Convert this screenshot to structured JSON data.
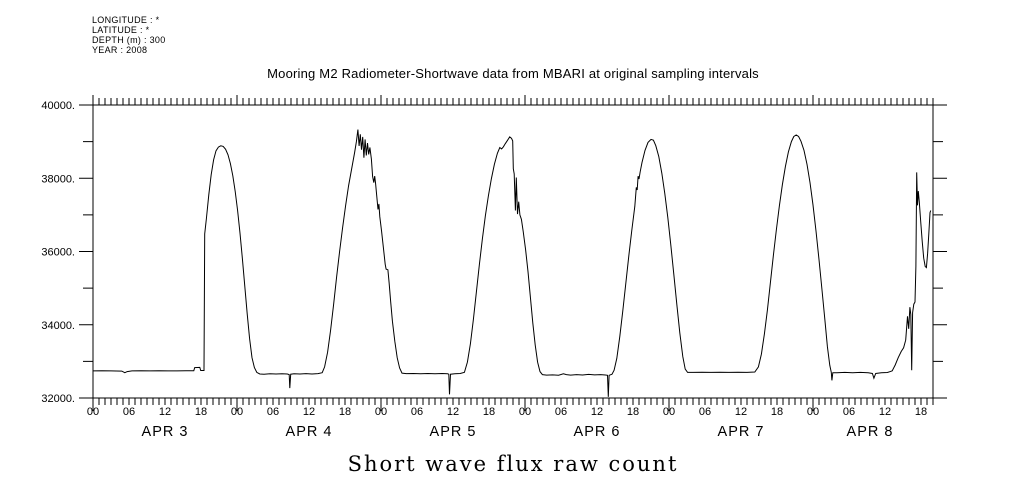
{
  "header": {
    "meta_lines": [
      "LONGITUDE : *",
      "LATITUDE : *",
      "DEPTH (m) : 300",
      "YEAR : 2008"
    ],
    "title": "Mooring M2 Radiometer-Shortwave data from MBARI at original sampling intervals"
  },
  "footer": {
    "xlabel": "Short wave flux raw count"
  },
  "colors": {
    "background": "#ffffff",
    "axis": "#000000",
    "line": "#000000"
  },
  "chart_data": {
    "type": "line",
    "title": "Mooring M2 Radiometer-Shortwave data from MBARI at original sampling intervals",
    "xlabel": "Short wave flux raw count",
    "ylabel": "",
    "grid": false,
    "legend": "none",
    "x_axis": {
      "unit": "hour (UTC), starting 2008 APR 3 00:00",
      "start_hour": 0,
      "end_hour": 140,
      "minor_tick_hours": 1,
      "labeled_tick_hours": 6,
      "hour_label_cycle": [
        "00",
        "06",
        "12",
        "18"
      ],
      "day_labels": [
        {
          "text": "APR  3",
          "center_hour": 12
        },
        {
          "text": "APR  4",
          "center_hour": 36
        },
        {
          "text": "APR  5",
          "center_hour": 60
        },
        {
          "text": "APR  6",
          "center_hour": 84
        },
        {
          "text": "APR  7",
          "center_hour": 108
        },
        {
          "text": "APR  8",
          "center_hour": 129.5
        }
      ]
    },
    "y_axis": {
      "min": 32000,
      "max": 40000,
      "minor_step": 1000,
      "major_step": 2000,
      "major_labels": [
        "32000.",
        "34000.",
        "36000.",
        "38000.",
        "40000."
      ]
    },
    "series": [
      {
        "name": "shortwave flux raw count",
        "color": "#000000",
        "points": [
          [
            0,
            32740
          ],
          [
            1.5,
            32745
          ],
          [
            3,
            32740
          ],
          [
            4.8,
            32735
          ],
          [
            5.3,
            32690
          ],
          [
            5.7,
            32720
          ],
          [
            6.5,
            32740
          ],
          [
            8,
            32745
          ],
          [
            9.5,
            32740
          ],
          [
            11,
            32745
          ],
          [
            12.5,
            32740
          ],
          [
            14,
            32740
          ],
          [
            15.5,
            32745
          ],
          [
            16.8,
            32745
          ],
          [
            16.95,
            32830
          ],
          [
            17.8,
            32835
          ],
          [
            17.95,
            32750
          ],
          [
            18.5,
            32750
          ],
          [
            18.62,
            36480
          ],
          [
            18.9,
            36900
          ],
          [
            19.3,
            37550
          ],
          [
            19.7,
            38100
          ],
          [
            20.1,
            38500
          ],
          [
            20.5,
            38750
          ],
          [
            20.9,
            38850
          ],
          [
            21.3,
            38885
          ],
          [
            21.7,
            38870
          ],
          [
            22.1,
            38790
          ],
          [
            22.5,
            38640
          ],
          [
            22.9,
            38400
          ],
          [
            23.3,
            38070
          ],
          [
            23.7,
            37640
          ],
          [
            24.1,
            37120
          ],
          [
            24.5,
            36500
          ],
          [
            24.9,
            35800
          ],
          [
            25.3,
            35050
          ],
          [
            25.7,
            34300
          ],
          [
            26.1,
            33620
          ],
          [
            26.5,
            33100
          ],
          [
            26.9,
            32830
          ],
          [
            27.3,
            32700
          ],
          [
            27.8,
            32655
          ],
          [
            28.5,
            32650
          ],
          [
            29.5,
            32660
          ],
          [
            30.5,
            32655
          ],
          [
            31.5,
            32660
          ],
          [
            32.4,
            32655
          ],
          [
            32.7,
            32640
          ],
          [
            32.8,
            32270
          ],
          [
            32.95,
            32650
          ],
          [
            33.5,
            32660
          ],
          [
            34.5,
            32655
          ],
          [
            35.5,
            32665
          ],
          [
            36.5,
            32655
          ],
          [
            37.5,
            32665
          ],
          [
            38.2,
            32690
          ],
          [
            38.6,
            32850
          ],
          [
            39.1,
            33250
          ],
          [
            39.6,
            33850
          ],
          [
            40.1,
            34550
          ],
          [
            40.6,
            35300
          ],
          [
            41.1,
            36000
          ],
          [
            41.6,
            36650
          ],
          [
            42.1,
            37250
          ],
          [
            42.6,
            37800
          ],
          [
            43.1,
            38250
          ],
          [
            43.6,
            38700
          ],
          [
            43.9,
            39000
          ],
          [
            44.15,
            39330
          ],
          [
            44.35,
            38880
          ],
          [
            44.55,
            39200
          ],
          [
            44.75,
            38780
          ],
          [
            44.95,
            39130
          ],
          [
            45.15,
            38560
          ],
          [
            45.35,
            39060
          ],
          [
            45.55,
            38620
          ],
          [
            45.75,
            38960
          ],
          [
            45.95,
            38650
          ],
          [
            46.15,
            38840
          ],
          [
            46.4,
            38520
          ],
          [
            46.6,
            38050
          ],
          [
            46.8,
            37880
          ],
          [
            46.95,
            38060
          ],
          [
            47.1,
            37850
          ],
          [
            47.3,
            37500
          ],
          [
            47.5,
            37150
          ],
          [
            47.65,
            37300
          ],
          [
            47.8,
            36950
          ],
          [
            48.1,
            36550
          ],
          [
            48.4,
            36100
          ],
          [
            48.7,
            35650
          ],
          [
            48.85,
            35520
          ],
          [
            49.15,
            35500
          ],
          [
            49.35,
            35150
          ],
          [
            49.6,
            34650
          ],
          [
            49.9,
            34100
          ],
          [
            50.3,
            33550
          ],
          [
            50.7,
            33100
          ],
          [
            51.1,
            32820
          ],
          [
            51.5,
            32680
          ],
          [
            52.2,
            32665
          ],
          [
            53.4,
            32670
          ],
          [
            54.6,
            32660
          ],
          [
            55.8,
            32670
          ],
          [
            57,
            32660
          ],
          [
            58.2,
            32668
          ],
          [
            59.1,
            32660
          ],
          [
            59.3,
            32650
          ],
          [
            59.42,
            32100
          ],
          [
            59.58,
            32650
          ],
          [
            60.3,
            32660
          ],
          [
            61.2,
            32670
          ],
          [
            61.9,
            32700
          ],
          [
            62.4,
            32980
          ],
          [
            62.9,
            33480
          ],
          [
            63.4,
            34150
          ],
          [
            63.9,
            34900
          ],
          [
            64.4,
            35650
          ],
          [
            64.9,
            36350
          ],
          [
            65.4,
            36980
          ],
          [
            65.9,
            37520
          ],
          [
            66.4,
            37990
          ],
          [
            66.9,
            38380
          ],
          [
            67.4,
            38680
          ],
          [
            67.8,
            38840
          ],
          [
            68.1,
            38800
          ],
          [
            68.4,
            38860
          ],
          [
            68.7,
            38940
          ],
          [
            69.1,
            39040
          ],
          [
            69.45,
            39130
          ],
          [
            69.75,
            39090
          ],
          [
            69.95,
            39020
          ],
          [
            70.05,
            38260
          ],
          [
            70.2,
            38120
          ],
          [
            70.4,
            37120
          ],
          [
            70.55,
            38020
          ],
          [
            70.75,
            37020
          ],
          [
            70.95,
            37360
          ],
          [
            71.15,
            37000
          ],
          [
            71.4,
            36880
          ],
          [
            71.7,
            36550
          ],
          [
            72.1,
            36050
          ],
          [
            72.5,
            35450
          ],
          [
            72.9,
            34750
          ],
          [
            73.3,
            34050
          ],
          [
            73.7,
            33450
          ],
          [
            74.1,
            32980
          ],
          [
            74.5,
            32720
          ],
          [
            74.9,
            32640
          ],
          [
            75.6,
            32625
          ],
          [
            76.6,
            32630
          ],
          [
            77.6,
            32622
          ],
          [
            78.4,
            32660
          ],
          [
            78.9,
            32640
          ],
          [
            79.6,
            32625
          ],
          [
            80.6,
            32640
          ],
          [
            81.6,
            32628
          ],
          [
            82.6,
            32645
          ],
          [
            83.6,
            32630
          ],
          [
            84.6,
            32638
          ],
          [
            85.4,
            32628
          ],
          [
            85.75,
            32620
          ],
          [
            85.88,
            32030
          ],
          [
            86.02,
            32620
          ],
          [
            86.5,
            32650
          ],
          [
            86.85,
            32760
          ],
          [
            87.3,
            33080
          ],
          [
            87.8,
            33680
          ],
          [
            88.3,
            34380
          ],
          [
            88.8,
            35130
          ],
          [
            89.3,
            35880
          ],
          [
            89.8,
            36580
          ],
          [
            90.3,
            37230
          ],
          [
            90.55,
            37750
          ],
          [
            90.7,
            37680
          ],
          [
            90.85,
            38060
          ],
          [
            91.0,
            37980
          ],
          [
            91.2,
            38180
          ],
          [
            91.5,
            38430
          ],
          [
            92.0,
            38760
          ],
          [
            92.5,
            38980
          ],
          [
            93.0,
            39060
          ],
          [
            93.4,
            39040
          ],
          [
            93.8,
            38890
          ],
          [
            94.3,
            38590
          ],
          [
            94.8,
            38140
          ],
          [
            95.3,
            37580
          ],
          [
            95.8,
            36930
          ],
          [
            96.3,
            36180
          ],
          [
            96.8,
            35380
          ],
          [
            97.3,
            34560
          ],
          [
            97.8,
            33780
          ],
          [
            98.3,
            33130
          ],
          [
            98.7,
            32790
          ],
          [
            99.1,
            32700
          ],
          [
            100,
            32700
          ],
          [
            101.5,
            32705
          ],
          [
            103,
            32698
          ],
          [
            104.5,
            32705
          ],
          [
            106,
            32700
          ],
          [
            107.5,
            32705
          ],
          [
            109,
            32700
          ],
          [
            110.3,
            32710
          ],
          [
            110.9,
            32850
          ],
          [
            111.4,
            33200
          ],
          [
            111.9,
            33750
          ],
          [
            112.4,
            34400
          ],
          [
            112.9,
            35150
          ],
          [
            113.4,
            35900
          ],
          [
            113.9,
            36600
          ],
          [
            114.4,
            37250
          ],
          [
            114.9,
            37830
          ],
          [
            115.4,
            38320
          ],
          [
            115.9,
            38720
          ],
          [
            116.4,
            39000
          ],
          [
            116.8,
            39140
          ],
          [
            117.2,
            39180
          ],
          [
            117.6,
            39140
          ],
          [
            118.0,
            39010
          ],
          [
            118.5,
            38760
          ],
          [
            119.0,
            38380
          ],
          [
            119.5,
            37880
          ],
          [
            120.0,
            37270
          ],
          [
            120.5,
            36560
          ],
          [
            121.0,
            35780
          ],
          [
            121.5,
            34950
          ],
          [
            122.0,
            34100
          ],
          [
            122.4,
            33400
          ],
          [
            122.8,
            32890
          ],
          [
            123.05,
            32700
          ],
          [
            123.15,
            32480
          ],
          [
            123.3,
            32690
          ],
          [
            124,
            32690
          ],
          [
            125.3,
            32698
          ],
          [
            126.6,
            32690
          ],
          [
            127.9,
            32698
          ],
          [
            129.2,
            32688
          ],
          [
            129.9,
            32670
          ],
          [
            130.15,
            32540
          ],
          [
            130.45,
            32670
          ],
          [
            131.4,
            32688
          ],
          [
            132.4,
            32695
          ],
          [
            133.2,
            32740
          ],
          [
            133.7,
            32900
          ],
          [
            134.2,
            33100
          ],
          [
            134.7,
            33270
          ],
          [
            135.1,
            33370
          ],
          [
            135.45,
            33580
          ],
          [
            135.75,
            34230
          ],
          [
            135.95,
            33890
          ],
          [
            136.15,
            34480
          ],
          [
            136.3,
            34280
          ],
          [
            136.45,
            32760
          ],
          [
            136.6,
            34330
          ],
          [
            136.8,
            34560
          ],
          [
            137.0,
            34620
          ],
          [
            137.15,
            35600
          ],
          [
            137.28,
            38160
          ],
          [
            137.42,
            37260
          ],
          [
            137.55,
            37650
          ],
          [
            137.72,
            37350
          ],
          [
            137.95,
            36820
          ],
          [
            138.2,
            36280
          ],
          [
            138.45,
            35820
          ],
          [
            138.7,
            35590
          ],
          [
            138.9,
            35560
          ],
          [
            139.1,
            35940
          ],
          [
            139.3,
            36480
          ],
          [
            139.5,
            37060
          ],
          [
            139.62,
            37120
          ]
        ]
      }
    ]
  }
}
